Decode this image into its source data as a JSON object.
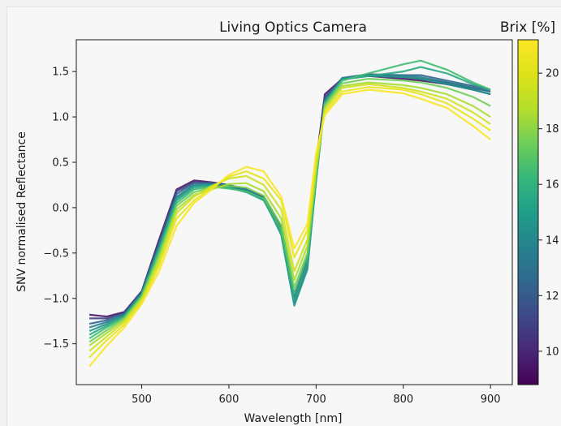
{
  "chart_data": {
    "type": "line",
    "title": "Living Optics Camera",
    "xlabel": "Wavelength [nm]",
    "ylabel": "SNV normalised Reflectance",
    "xlim": [
      425,
      925
    ],
    "ylim": [
      -1.95,
      1.85
    ],
    "x_ticks": [
      500,
      600,
      700,
      800,
      900
    ],
    "x_tick_labels": [
      "500",
      "600",
      "700",
      "800",
      "900"
    ],
    "y_ticks": [
      -1.5,
      -1.0,
      -0.5,
      0.0,
      0.5,
      1.0,
      1.5
    ],
    "y_tick_labels": [
      "−1.5",
      "−1.0",
      "−0.5",
      "0.0",
      "0.5",
      "1.0",
      "1.5"
    ],
    "grid": false,
    "colormap": "viridis",
    "colorbar": {
      "label": "Brix [%]",
      "range": [
        8.8,
        21.2
      ],
      "ticks": [
        10,
        12,
        14,
        16,
        18,
        20
      ],
      "tick_labels": [
        "10",
        "12",
        "14",
        "16",
        "18",
        "20"
      ]
    },
    "x": [
      440,
      460,
      480,
      500,
      520,
      540,
      560,
      580,
      600,
      620,
      640,
      660,
      675,
      690,
      700,
      710,
      730,
      760,
      800,
      820,
      850,
      880,
      900
    ],
    "series": [
      {
        "brix": 9.5,
        "values": [
          -1.18,
          -1.2,
          -1.15,
          -0.92,
          -0.35,
          0.2,
          0.3,
          0.28,
          0.25,
          0.2,
          0.12,
          -0.2,
          -0.95,
          -0.55,
          0.5,
          1.25,
          1.42,
          1.45,
          1.42,
          1.4,
          1.36,
          1.3,
          1.25
        ]
      },
      {
        "brix": 11.0,
        "values": [
          -1.22,
          -1.22,
          -1.16,
          -0.93,
          -0.38,
          0.18,
          0.28,
          0.27,
          0.24,
          0.18,
          0.1,
          -0.22,
          -0.98,
          -0.58,
          0.45,
          1.22,
          1.42,
          1.46,
          1.44,
          1.42,
          1.38,
          1.32,
          1.28
        ]
      },
      {
        "brix": 12.5,
        "values": [
          -1.28,
          -1.24,
          -1.17,
          -0.93,
          -0.4,
          0.15,
          0.27,
          0.27,
          0.25,
          0.19,
          0.09,
          -0.25,
          -1.02,
          -0.62,
          0.4,
          1.2,
          1.43,
          1.47,
          1.46,
          1.46,
          1.4,
          1.34,
          1.3
        ]
      },
      {
        "brix": 13.5,
        "values": [
          -1.32,
          -1.26,
          -1.18,
          -0.94,
          -0.42,
          0.12,
          0.25,
          0.26,
          0.24,
          0.2,
          0.1,
          -0.28,
          -1.05,
          -0.65,
          0.35,
          1.18,
          1.42,
          1.46,
          1.45,
          1.44,
          1.38,
          1.32,
          1.28
        ]
      },
      {
        "brix": 14.5,
        "values": [
          -1.36,
          -1.28,
          -1.19,
          -0.95,
          -0.44,
          0.1,
          0.24,
          0.25,
          0.22,
          0.18,
          0.1,
          -0.3,
          -1.08,
          -0.68,
          0.3,
          1.16,
          1.42,
          1.45,
          1.44,
          1.42,
          1.36,
          1.3,
          1.25
        ]
      },
      {
        "brix": 15.5,
        "values": [
          -1.4,
          -1.3,
          -1.2,
          -0.96,
          -0.46,
          0.08,
          0.22,
          0.24,
          0.22,
          0.17,
          0.08,
          -0.28,
          -1.02,
          -0.62,
          0.3,
          1.15,
          1.41,
          1.45,
          1.5,
          1.55,
          1.48,
          1.36,
          1.3
        ]
      },
      {
        "brix": 16.5,
        "values": [
          -1.44,
          -1.32,
          -1.21,
          -0.97,
          -0.48,
          0.05,
          0.2,
          0.23,
          0.21,
          0.18,
          0.1,
          -0.25,
          -0.95,
          -0.55,
          0.35,
          1.15,
          1.4,
          1.48,
          1.58,
          1.62,
          1.52,
          1.38,
          1.3
        ]
      },
      {
        "brix": 17.5,
        "values": [
          -1.48,
          -1.35,
          -1.22,
          -0.98,
          -0.52,
          0.02,
          0.17,
          0.22,
          0.24,
          0.22,
          0.13,
          -0.2,
          -0.88,
          -0.5,
          0.38,
          1.12,
          1.37,
          1.42,
          1.4,
          1.38,
          1.32,
          1.22,
          1.12
        ]
      },
      {
        "brix": 18.5,
        "values": [
          -1.52,
          -1.38,
          -1.24,
          -1.0,
          -0.56,
          -0.02,
          0.14,
          0.2,
          0.26,
          0.27,
          0.18,
          -0.12,
          -0.8,
          -0.42,
          0.42,
          1.1,
          1.34,
          1.38,
          1.35,
          1.32,
          1.25,
          1.12,
          1.0
        ]
      },
      {
        "brix": 19.5,
        "values": [
          -1.58,
          -1.42,
          -1.26,
          -1.02,
          -0.6,
          -0.06,
          0.12,
          0.24,
          0.32,
          0.35,
          0.25,
          -0.02,
          -0.7,
          -0.35,
          0.48,
          1.08,
          1.32,
          1.36,
          1.32,
          1.28,
          1.2,
          1.05,
          0.92
        ]
      },
      {
        "brix": 20.3,
        "values": [
          -1.65,
          -1.46,
          -1.29,
          -1.04,
          -0.64,
          -0.12,
          0.08,
          0.22,
          0.34,
          0.4,
          0.32,
          0.08,
          -0.55,
          -0.25,
          0.55,
          1.05,
          1.28,
          1.33,
          1.3,
          1.25,
          1.15,
          0.98,
          0.85
        ]
      },
      {
        "brix": 21.0,
        "values": [
          -1.75,
          -1.52,
          -1.32,
          -1.06,
          -0.7,
          -0.2,
          0.05,
          0.2,
          0.36,
          0.45,
          0.4,
          0.12,
          -0.45,
          -0.18,
          0.6,
          1.02,
          1.25,
          1.3,
          1.26,
          1.2,
          1.1,
          0.9,
          0.75
        ]
      }
    ]
  }
}
